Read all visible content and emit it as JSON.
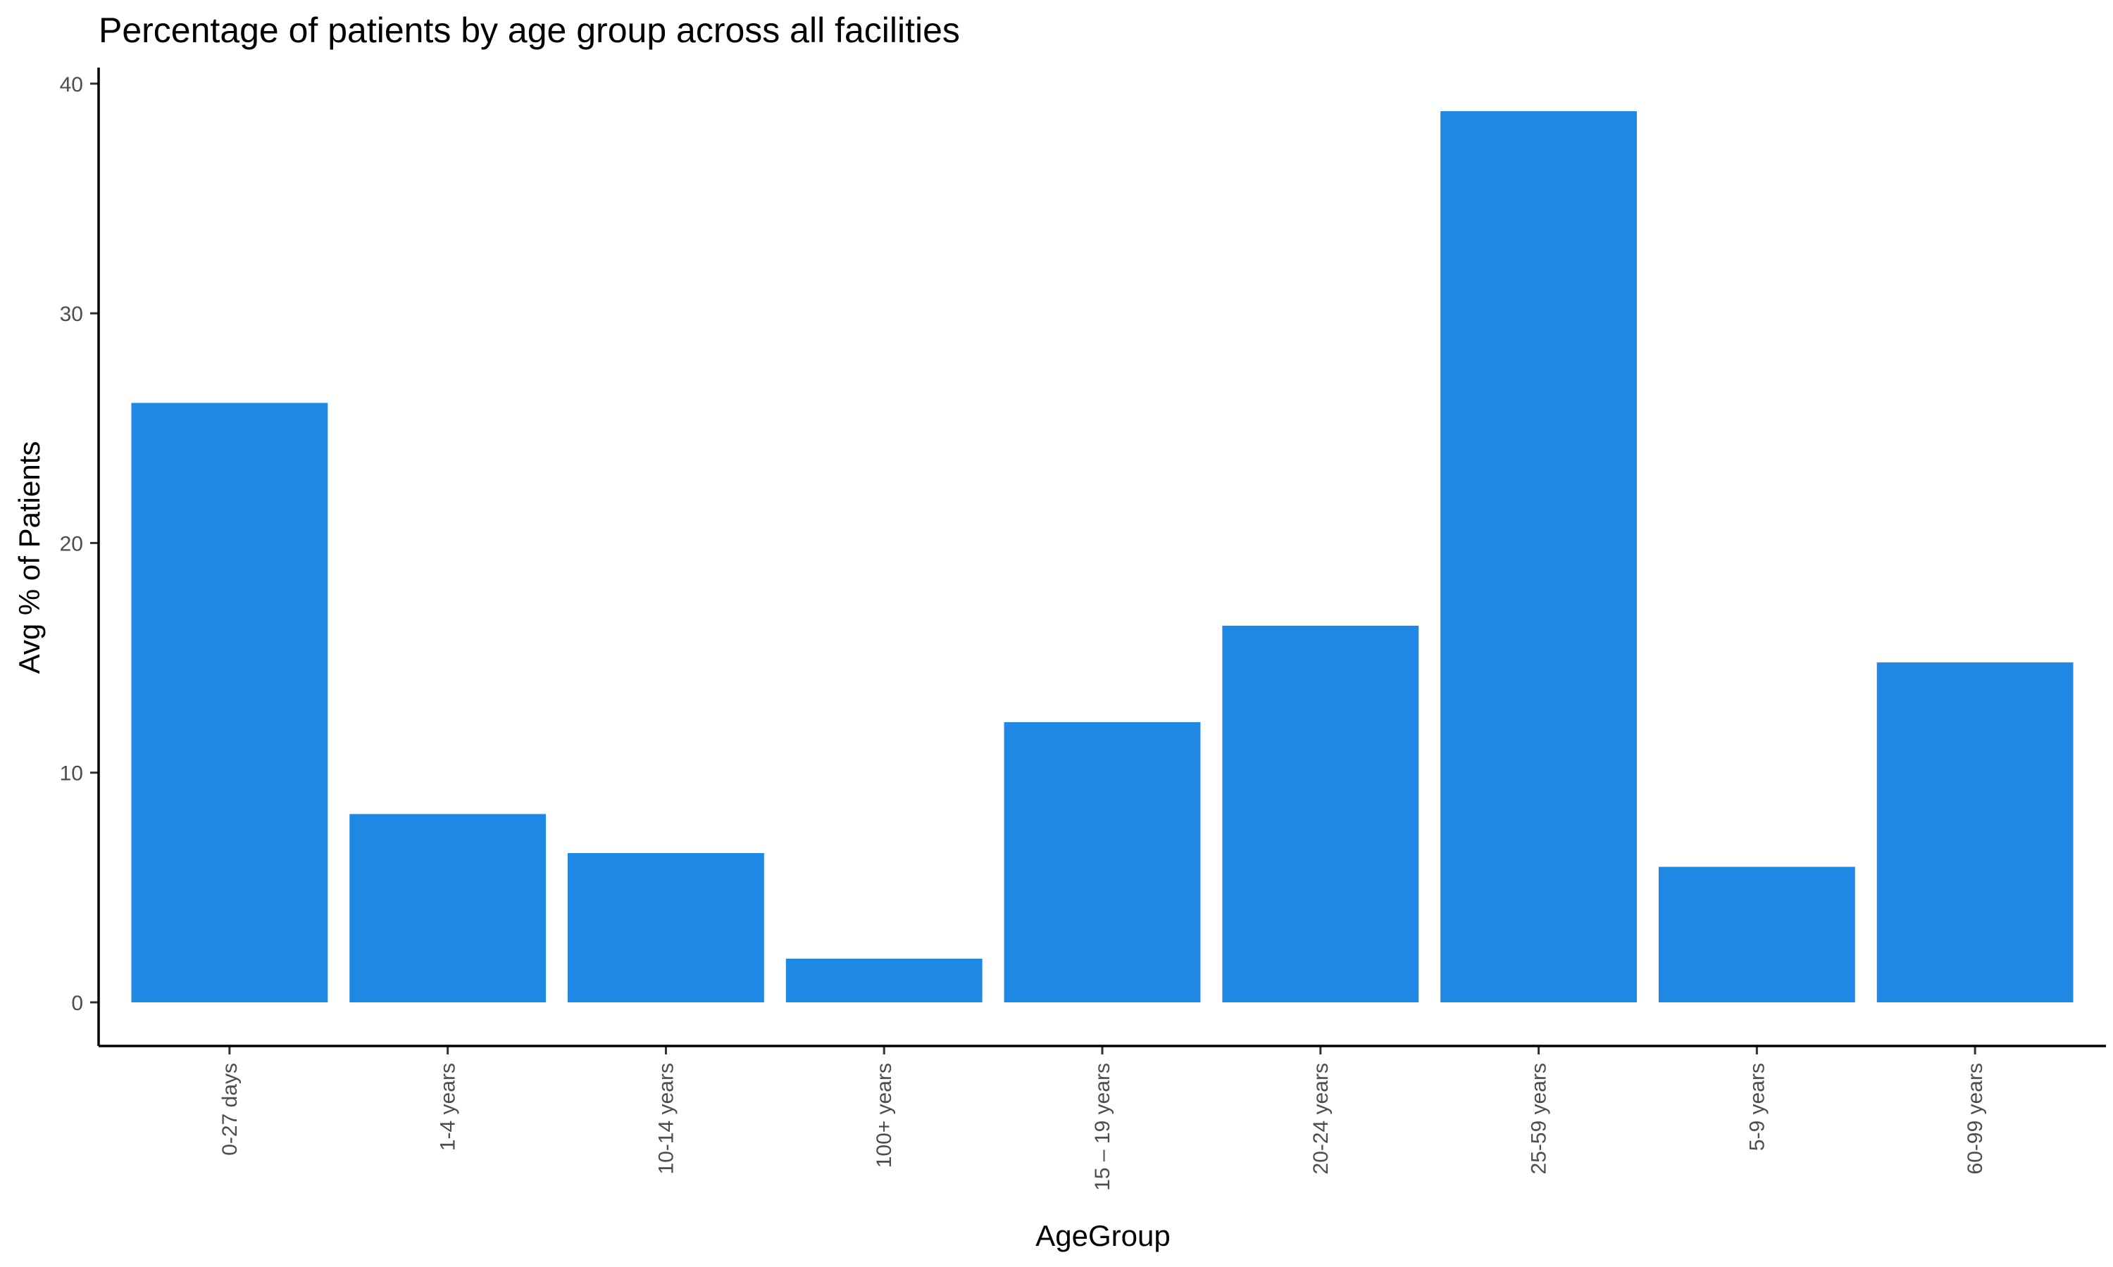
{
  "chart_data": {
    "type": "bar",
    "title": "Percentage of patients by age group across all facilities",
    "xlabel": "AgeGroup",
    "ylabel": "Avg % of Patients",
    "categories": [
      "0-27 days",
      "1-4 years",
      "10-14 years",
      "100+ years",
      "15 – 19 years",
      "20-24 years",
      "25-59 years",
      "5-9 years",
      "60-99 years"
    ],
    "values": [
      26.1,
      8.2,
      6.5,
      1.9,
      12.2,
      16.4,
      38.8,
      5.9,
      14.8
    ],
    "ylim": [
      -1.9,
      40.7
    ],
    "yticks": [
      0,
      10,
      20,
      30,
      40
    ],
    "ytick_labels": [
      "0",
      "10",
      "20",
      "30",
      "40"
    ],
    "grid": false,
    "legend": "none",
    "bar_color": "#1f88e5"
  }
}
